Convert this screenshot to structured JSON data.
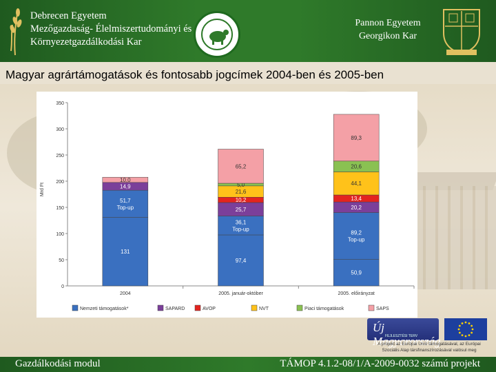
{
  "header": {
    "left_university": [
      "Debrecen Egyetem",
      "Mezőgazdaság- Élelmiszertudományi és",
      "Környezetgazdálkodási Kar"
    ],
    "right_university": [
      "Pannon Egyetem",
      "Georgikon Kar"
    ]
  },
  "slide_title": "Magyar agrártámogatások és fontosabb jogcímek 2004-ben és 2005-ben",
  "chart_data": {
    "type": "bar",
    "stacked": true,
    "ylabel": "Mrd Ft",
    "ylim": [
      0,
      350
    ],
    "yticks": [
      0,
      50,
      100,
      150,
      200,
      250,
      300,
      350
    ],
    "grid": false,
    "legend_position": "bottom",
    "categories": [
      "2004",
      "2005. január-október",
      "2005. előirányzat"
    ],
    "series": [
      {
        "name": "Nemzeti támogatások*",
        "color": "#3a70c0",
        "values": [
          131,
          97.4,
          50.9
        ],
        "labels": [
          "131",
          "97,4",
          "50,9"
        ]
      },
      {
        "name": "Top-up",
        "color": "#3a70c0",
        "values": [
          51.7,
          36.1,
          89.2
        ],
        "labels": [
          "51,7\nTop-up",
          "36,1\nTop-up",
          "89,2\nTop-up"
        ]
      },
      {
        "name": "SAPARD",
        "color": "#7b3f9a",
        "values": [
          14.9,
          25.7,
          20.2
        ],
        "labels": [
          "14,9",
          "25,7",
          "20,2"
        ]
      },
      {
        "name": "AVOP",
        "color": "#e3241f",
        "values": [
          0,
          10.2,
          13.4
        ],
        "labels": [
          "",
          "10,2",
          "13,4"
        ]
      },
      {
        "name": "NVT",
        "color": "#ffc21a",
        "values": [
          0,
          21.6,
          44.1
        ],
        "labels": [
          "",
          "21,6",
          "44,1"
        ]
      },
      {
        "name": "Piaci támogatások",
        "color": "#8ac152",
        "values": [
          0,
          5.0,
          20.6
        ],
        "labels": [
          "",
          "5,0",
          "20,6"
        ]
      },
      {
        "name": "SAPS",
        "color": "#f4a0a6",
        "values": [
          10.0,
          65.2,
          89.3
        ],
        "labels": [
          "10,0",
          "65,2",
          "89,3"
        ]
      }
    ],
    "legend": [
      {
        "name": "Nemzeti támogatások*",
        "color": "#3a70c0"
      },
      {
        "name": "SAPARD",
        "color": "#7b3f9a"
      },
      {
        "name": "AVOP",
        "color": "#e3241f"
      },
      {
        "name": "NVT",
        "color": "#ffc21a"
      },
      {
        "name": "Piaci támogatások",
        "color": "#8ac152"
      },
      {
        "name": "SAPS",
        "color": "#f4a0a6"
      }
    ]
  },
  "eu": {
    "logo_text": "Új Magyarország",
    "logo_sub": "FEJLESZTÉSI TERV",
    "note": "A projekt az Európai Unió támogatásával, az Európai Szociális Alap társfinanszírozásával valósul meg"
  },
  "footer": {
    "left": "Gazdálkodási modul",
    "right": "TÁMOP 4.1.2-08/1/A-2009-0032 számú projekt"
  }
}
